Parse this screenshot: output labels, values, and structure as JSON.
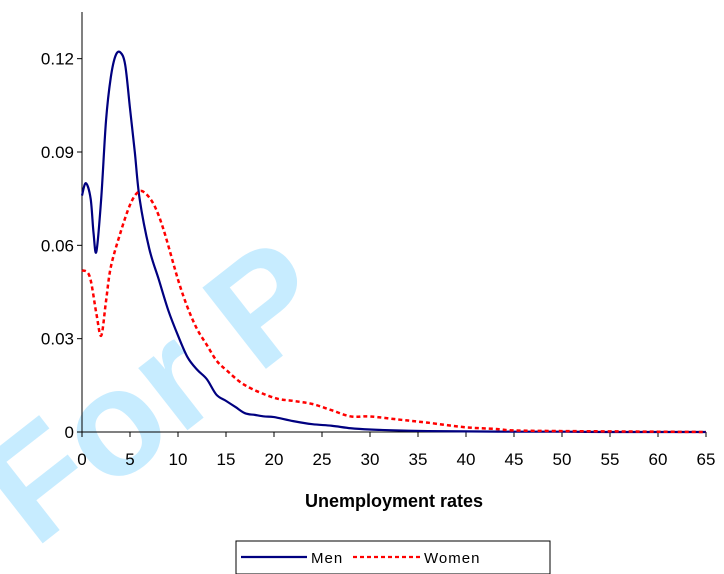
{
  "chart_data": {
    "type": "line",
    "title": "",
    "xlabel": "Unemployment rates",
    "ylabel": "",
    "xlim": [
      0,
      65
    ],
    "ylim": [
      0,
      0.135
    ],
    "x_ticks": [
      "0",
      "5",
      "10",
      "15",
      "20",
      "25",
      "30",
      "35",
      "40",
      "45",
      "50",
      "55",
      "60",
      "65"
    ],
    "y_ticks": [
      "0",
      "0.03",
      "0.06",
      "0.09",
      "0.12"
    ],
    "grid": false,
    "legend_position": "bottom",
    "series": [
      {
        "name": "Men",
        "color": "#000080",
        "style": "solid",
        "x": [
          0,
          0.4,
          0.9,
          1.2,
          1.5,
          2,
          2.5,
          3,
          3.5,
          4,
          4.5,
          5,
          5.5,
          6,
          7,
          8,
          9,
          10,
          11,
          12,
          13,
          14,
          15,
          16,
          17,
          18,
          19,
          20,
          22,
          24,
          26,
          28,
          30,
          33,
          36,
          40,
          45,
          50,
          55,
          60,
          65
        ],
        "y": [
          0.076,
          0.08,
          0.075,
          0.064,
          0.058,
          0.075,
          0.1,
          0.114,
          0.121,
          0.122,
          0.118,
          0.104,
          0.09,
          0.075,
          0.059,
          0.049,
          0.039,
          0.031,
          0.024,
          0.02,
          0.017,
          0.012,
          0.01,
          0.008,
          0.006,
          0.0055,
          0.005,
          0.0048,
          0.0035,
          0.0025,
          0.002,
          0.0012,
          0.0008,
          0.0005,
          0.0003,
          0.0002,
          0.0001,
          0.0001,
          0.0,
          0.0,
          0.0
        ]
      },
      {
        "name": "Women",
        "color": "#ff0000",
        "style": "dashed",
        "x": [
          0,
          0.8,
          1.5,
          2,
          2.5,
          3,
          4,
          5,
          5.8,
          6.5,
          7.5,
          8.5,
          10,
          11,
          12,
          13,
          14,
          15,
          17,
          20,
          22,
          24,
          26,
          28,
          30,
          33,
          36,
          40,
          43,
          45,
          50,
          55,
          60,
          65
        ],
        "y": [
          0.052,
          0.05,
          0.038,
          0.031,
          0.042,
          0.053,
          0.064,
          0.073,
          0.077,
          0.077,
          0.073,
          0.065,
          0.049,
          0.04,
          0.033,
          0.028,
          0.023,
          0.02,
          0.015,
          0.011,
          0.01,
          0.009,
          0.007,
          0.005,
          0.005,
          0.004,
          0.003,
          0.0015,
          0.001,
          0.0005,
          0.0003,
          0.0002,
          0.0001,
          0.0
        ]
      }
    ]
  }
}
